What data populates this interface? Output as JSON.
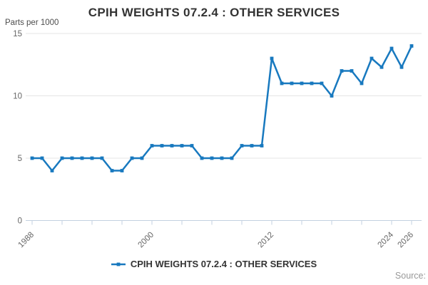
{
  "page": {
    "title": "CPIH WEIGHTS 07.2.4 : OTHER SERVICES",
    "units_label": "Parts per 1000",
    "source_label": "Source:"
  },
  "legend": {
    "series_label": "CPIH WEIGHTS 07.2.4 : OTHER SERVICES"
  },
  "chart_data": {
    "type": "line",
    "title": "CPIH WEIGHTS 07.2.4 : OTHER SERVICES",
    "ylabel": "Parts per 1000",
    "xlabel": "",
    "x": [
      1988,
      1989,
      1990,
      1991,
      1992,
      1993,
      1994,
      1995,
      1996,
      1997,
      1998,
      1999,
      2000,
      2001,
      2002,
      2003,
      2004,
      2005,
      2006,
      2007,
      2008,
      2009,
      2010,
      2011,
      2012,
      2013,
      2014,
      2015,
      2016,
      2017,
      2018,
      2019,
      2020,
      2021,
      2022,
      2023,
      2024,
      2025,
      2026
    ],
    "series": [
      {
        "name": "CPIH WEIGHTS 07.2.4 : OTHER SERVICES",
        "values": [
          5,
          5,
          4,
          5,
          5,
          5,
          5,
          5,
          4,
          4,
          5,
          5,
          6,
          6,
          6,
          6,
          6,
          5,
          5,
          5,
          5,
          6,
          6,
          6,
          13,
          11,
          11,
          11,
          11,
          11,
          10,
          12,
          12,
          11,
          13,
          12.3,
          13.8,
          12.3,
          14
        ],
        "color": "#1879bf",
        "marker": "square"
      }
    ],
    "ylim": [
      0,
      15
    ],
    "yticks": [
      0,
      5,
      10,
      15
    ],
    "xtick_step_years": 3,
    "xtick_labels": [
      "1988",
      "2000",
      "2012",
      "2024",
      "2026"
    ],
    "grid": "horizontal-only",
    "legend_position": "bottom-center",
    "source_note": "Source:",
    "colors": {
      "line": "#1879bf",
      "axis": "#c3d1e0",
      "gridline": "#e4e4e4",
      "tick_label": "#666666",
      "title": "#333333"
    }
  }
}
